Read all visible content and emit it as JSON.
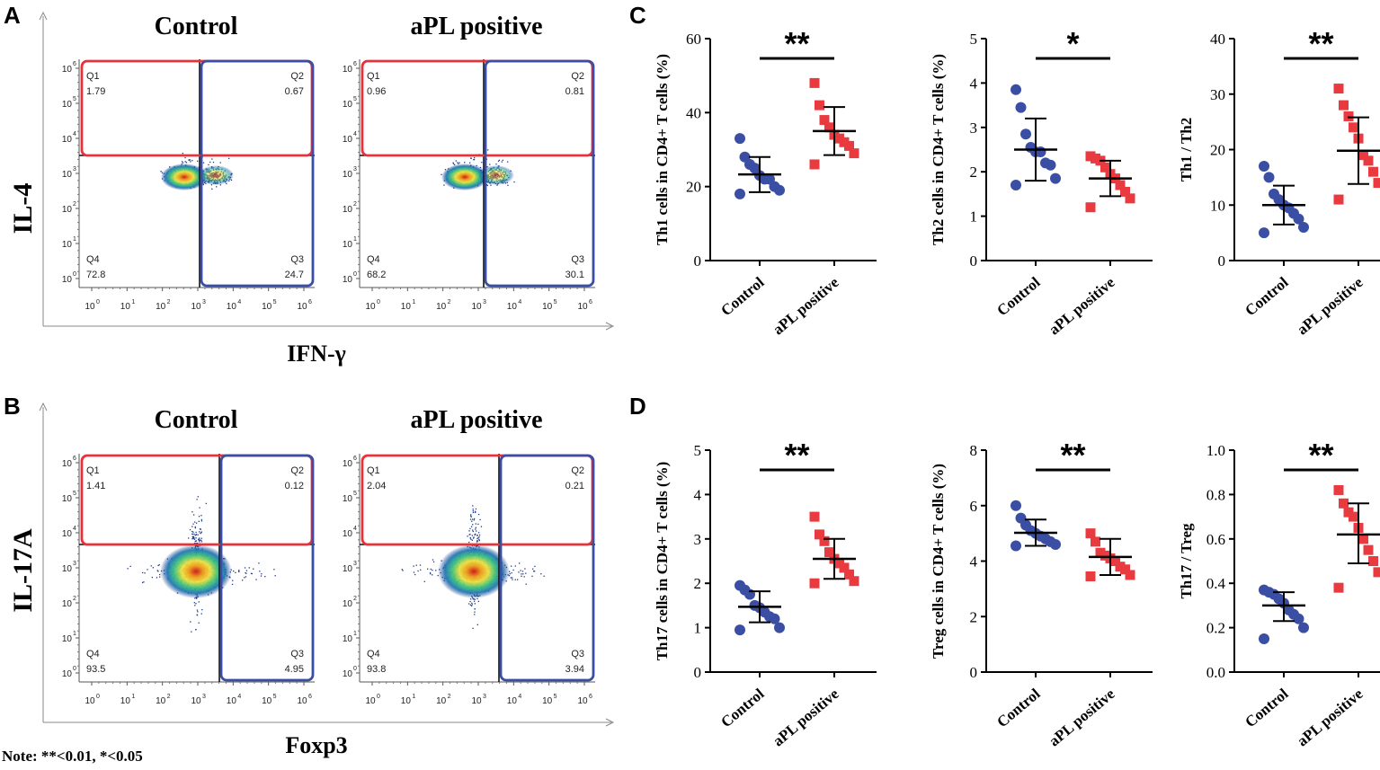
{
  "panels": {
    "a": "A",
    "b": "B",
    "c": "C",
    "d": "D"
  },
  "note": "Note: **<0.01, *<0.05",
  "flow": {
    "A": {
      "y_axis_label": "IL-4",
      "x_axis_label": "IFN-γ",
      "plots": [
        {
          "title": "Control",
          "q1": "1.79",
          "q2": "0.67",
          "q3": "24.7",
          "q4": "72.8"
        },
        {
          "title": "aPL positive",
          "q1": "0.96",
          "q2": "0.81",
          "q3": "30.1",
          "q4": "68.2"
        }
      ]
    },
    "B": {
      "y_axis_label": "IL-17A",
      "x_axis_label": "Foxp3",
      "plots": [
        {
          "title": "Control",
          "q1": "1.41",
          "q2": "0.12",
          "q3": "4.95",
          "q4": "93.5"
        },
        {
          "title": "aPL positive",
          "q1": "2.04",
          "q2": "0.21",
          "q3": "3.94",
          "q4": "93.8"
        }
      ]
    },
    "quadrant_names": [
      "Q1",
      "Q2",
      "Q3",
      "Q4"
    ],
    "tick_labels": [
      "10",
      "10",
      "10",
      "10",
      "10",
      "10",
      "10"
    ],
    "tick_exponents": [
      "0",
      "1",
      "2",
      "3",
      "4",
      "5",
      "6"
    ]
  },
  "chart_data": [
    {
      "id": "c1",
      "type": "scatter",
      "ylabel": "Th1 cells in CD4+ T cells (%)",
      "ylim": [
        0,
        60
      ],
      "yticks": [
        0,
        20,
        40,
        60
      ],
      "categories": [
        "Control",
        "aPL positive"
      ],
      "significance": "**",
      "series": [
        {
          "name": "Control",
          "color": "#3a4fa3",
          "marker": "circle",
          "values": [
            33,
            28,
            26,
            25,
            23,
            22,
            22,
            20,
            19,
            18
          ],
          "mean": 23.3,
          "sd_low": 18.5,
          "sd_high": 28
        },
        {
          "name": "aPL positive",
          "color": "#e83a3f",
          "marker": "square",
          "values": [
            48,
            42,
            38,
            36,
            34,
            33,
            32,
            31,
            29,
            26
          ],
          "mean": 35,
          "sd_low": 28.5,
          "sd_high": 41.5
        }
      ]
    },
    {
      "id": "c2",
      "type": "scatter",
      "ylabel": "Th2 cells in CD4+ T cells (%)",
      "ylim": [
        0,
        5
      ],
      "yticks": [
        0,
        1,
        2,
        3,
        4,
        5
      ],
      "categories": [
        "Control",
        "aPL positive"
      ],
      "significance": "*",
      "series": [
        {
          "name": "Control",
          "color": "#3a4fa3",
          "marker": "circle",
          "values": [
            3.85,
            3.45,
            2.85,
            2.55,
            2.45,
            2.45,
            2.2,
            2.15,
            1.85,
            1.7
          ],
          "mean": 2.5,
          "sd_low": 1.8,
          "sd_high": 3.2
        },
        {
          "name": "aPL positive",
          "color": "#e83a3f",
          "marker": "square",
          "values": [
            2.35,
            2.3,
            2.25,
            2.1,
            1.95,
            1.85,
            1.7,
            1.55,
            1.4,
            1.2
          ],
          "mean": 1.85,
          "sd_low": 1.45,
          "sd_high": 2.25
        }
      ]
    },
    {
      "id": "c3",
      "type": "scatter",
      "ylabel": "Th1 / Th2",
      "ylim": [
        0,
        40
      ],
      "yticks": [
        0,
        10,
        20,
        30,
        40
      ],
      "categories": [
        "Control",
        "aPL positive"
      ],
      "significance": "**",
      "series": [
        {
          "name": "Control",
          "color": "#3a4fa3",
          "marker": "circle",
          "values": [
            17,
            15,
            12,
            11,
            10,
            9.5,
            8.5,
            7.5,
            6,
            5
          ],
          "mean": 10,
          "sd_low": 6.5,
          "sd_high": 13.5
        },
        {
          "name": "aPL positive",
          "color": "#e83a3f",
          "marker": "square",
          "values": [
            31,
            28,
            26,
            24,
            22,
            19,
            18,
            16,
            14,
            11
          ],
          "mean": 19.8,
          "sd_low": 13.8,
          "sd_high": 25.8
        }
      ]
    },
    {
      "id": "d1",
      "type": "scatter",
      "ylabel": "Th17 cells in CD4+ T cells (%)",
      "ylim": [
        0,
        5
      ],
      "yticks": [
        0,
        1,
        2,
        3,
        4,
        5
      ],
      "categories": [
        "Control",
        "aPL positive"
      ],
      "significance": "**",
      "series": [
        {
          "name": "Control",
          "color": "#3a4fa3",
          "marker": "circle",
          "values": [
            1.95,
            1.85,
            1.75,
            1.5,
            1.45,
            1.35,
            1.25,
            1.2,
            1.0,
            0.95
          ],
          "mean": 1.47,
          "sd_low": 1.12,
          "sd_high": 1.82
        },
        {
          "name": "aPL positive",
          "color": "#e83a3f",
          "marker": "square",
          "values": [
            3.5,
            3.1,
            2.95,
            2.7,
            2.55,
            2.45,
            2.35,
            2.2,
            2.05,
            2.0
          ],
          "mean": 2.55,
          "sd_low": 2.1,
          "sd_high": 3.0
        }
      ]
    },
    {
      "id": "d2",
      "type": "scatter",
      "ylabel": "Treg cells in CD4+ T cells (%)",
      "ylim": [
        0,
        8
      ],
      "yticks": [
        0,
        2,
        4,
        6,
        8
      ],
      "categories": [
        "Control",
        "aPL positive"
      ],
      "significance": "**",
      "series": [
        {
          "name": "Control",
          "color": "#3a4fa3",
          "marker": "circle",
          "values": [
            6.0,
            5.55,
            5.3,
            5.1,
            5.0,
            4.9,
            4.8,
            4.7,
            4.6,
            4.55
          ],
          "mean": 5.02,
          "sd_low": 4.55,
          "sd_high": 5.5
        },
        {
          "name": "aPL positive",
          "color": "#e83a3f",
          "marker": "square",
          "values": [
            5.0,
            4.7,
            4.3,
            4.2,
            4.1,
            4.0,
            3.8,
            3.7,
            3.5,
            3.45
          ],
          "mean": 4.15,
          "sd_low": 3.5,
          "sd_high": 4.8
        }
      ]
    },
    {
      "id": "d3",
      "type": "scatter",
      "ylabel": "Th17 / Treg",
      "ylim": [
        0,
        1.0
      ],
      "yticks": [
        0.0,
        0.2,
        0.4,
        0.6,
        0.8,
        1.0
      ],
      "categories": [
        "Control",
        "aPL positive"
      ],
      "significance": "**",
      "series": [
        {
          "name": "Control",
          "color": "#3a4fa3",
          "marker": "circle",
          "values": [
            0.37,
            0.36,
            0.35,
            0.33,
            0.31,
            0.28,
            0.26,
            0.24,
            0.2,
            0.15
          ],
          "mean": 0.3,
          "sd_low": 0.23,
          "sd_high": 0.36
        },
        {
          "name": "aPL positive",
          "color": "#e83a3f",
          "marker": "square",
          "values": [
            0.82,
            0.76,
            0.72,
            0.7,
            0.65,
            0.6,
            0.55,
            0.5,
            0.45,
            0.38
          ],
          "mean": 0.62,
          "sd_low": 0.49,
          "sd_high": 0.76
        }
      ]
    }
  ]
}
